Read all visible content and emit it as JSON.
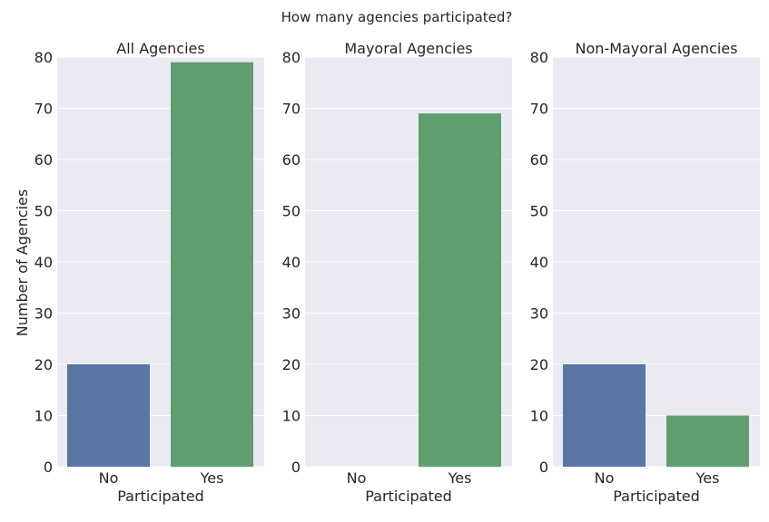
{
  "suptitle": "How many agencies participated?",
  "shared_ylabel": "Number of Agencies",
  "colors": {
    "no": "#5875a4",
    "yes": "#5f9e6e",
    "panel_bg": "#eaeaf2",
    "grid": "#ffffff",
    "text": "#262626"
  },
  "chart_data": [
    {
      "type": "bar",
      "title": "All Agencies",
      "xlabel": "Participated",
      "ylabel": "Number of Agencies",
      "categories": [
        "No",
        "Yes"
      ],
      "values": [
        20,
        79
      ],
      "ylim": [
        0,
        80
      ],
      "yticks": [
        0,
        10,
        20,
        30,
        40,
        50,
        60,
        70,
        80
      ],
      "grid": true
    },
    {
      "type": "bar",
      "title": "Mayoral Agencies",
      "xlabel": "Participated",
      "ylabel": "",
      "categories": [
        "No",
        "Yes"
      ],
      "values": [
        0,
        69
      ],
      "ylim": [
        0,
        80
      ],
      "yticks": [
        0,
        10,
        20,
        30,
        40,
        50,
        60,
        70,
        80
      ],
      "grid": true
    },
    {
      "type": "bar",
      "title": "Non-Mayoral Agencies",
      "xlabel": "Participated",
      "ylabel": "",
      "categories": [
        "No",
        "Yes"
      ],
      "values": [
        20,
        10
      ],
      "ylim": [
        0,
        80
      ],
      "yticks": [
        0,
        10,
        20,
        30,
        40,
        50,
        60,
        70,
        80
      ],
      "grid": true
    }
  ]
}
